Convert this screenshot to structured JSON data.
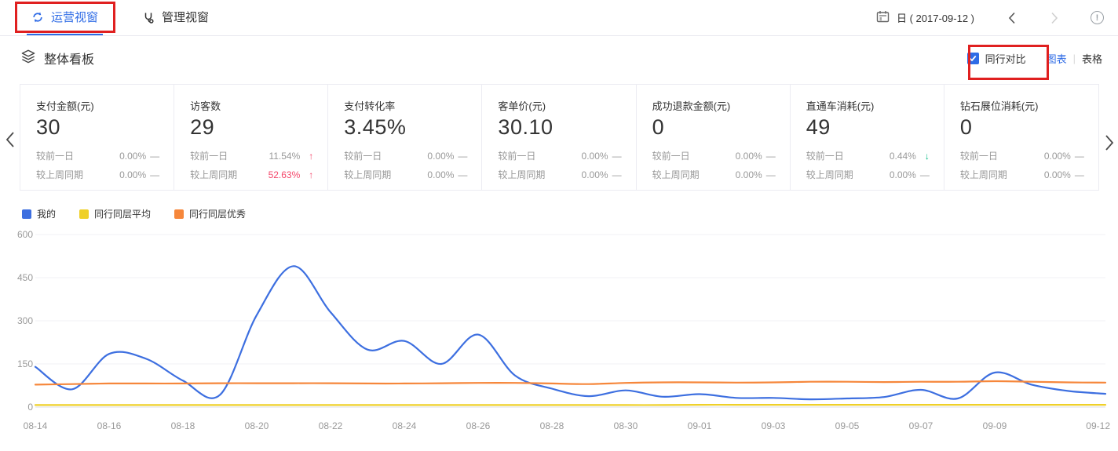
{
  "colors": {
    "accent_blue": "#2e6be6",
    "annotation_red": "#e02020",
    "up_red": "#f4486b",
    "down_green": "#00ba81",
    "flat_gray": "#9a9a9a",
    "axis_text": "#999999",
    "grid_line": "#f0f0f6",
    "grid_zero_line": "#dcdce4"
  },
  "header": {
    "tabs": [
      {
        "label": "运营视窗",
        "active": true
      },
      {
        "label": "管理视窗",
        "active": false
      }
    ],
    "date_label": "日 ( 2017-09-12 )",
    "info_glyph": "!"
  },
  "board": {
    "title": "整体看板",
    "peer_compare_label": "同行对比",
    "peer_compare_checked": true,
    "view_chart": "图表",
    "view_divider": "|",
    "view_table": "表格"
  },
  "kpi_cards": [
    {
      "title": "支付金额(元)",
      "value": "30",
      "rows": [
        {
          "label": "较前一日",
          "value": "0.00%",
          "trend": "flat",
          "emphasis": false
        },
        {
          "label": "较上周同期",
          "value": "0.00%",
          "trend": "flat",
          "emphasis": false
        }
      ]
    },
    {
      "title": "访客数",
      "value": "29",
      "rows": [
        {
          "label": "较前一日",
          "value": "11.54%",
          "trend": "up",
          "emphasis": false
        },
        {
          "label": "较上周同期",
          "value": "52.63%",
          "trend": "up",
          "emphasis": true
        }
      ]
    },
    {
      "title": "支付转化率",
      "value": "3.45%",
      "rows": [
        {
          "label": "较前一日",
          "value": "0.00%",
          "trend": "flat",
          "emphasis": false
        },
        {
          "label": "较上周同期",
          "value": "0.00%",
          "trend": "flat",
          "emphasis": false
        }
      ]
    },
    {
      "title": "客单价(元)",
      "value": "30.10",
      "rows": [
        {
          "label": "较前一日",
          "value": "0.00%",
          "trend": "flat",
          "emphasis": false
        },
        {
          "label": "较上周同期",
          "value": "0.00%",
          "trend": "flat",
          "emphasis": false
        }
      ]
    },
    {
      "title": "成功退款金额(元)",
      "value": "0",
      "rows": [
        {
          "label": "较前一日",
          "value": "0.00%",
          "trend": "flat",
          "emphasis": false
        },
        {
          "label": "较上周同期",
          "value": "0.00%",
          "trend": "flat",
          "emphasis": false
        }
      ]
    },
    {
      "title": "直通车消耗(元)",
      "value": "49",
      "rows": [
        {
          "label": "较前一日",
          "value": "0.44%",
          "trend": "down",
          "emphasis": false
        },
        {
          "label": "较上周同期",
          "value": "0.00%",
          "trend": "flat",
          "emphasis": false
        }
      ]
    },
    {
      "title": "钻石展位消耗(元)",
      "value": "0",
      "rows": [
        {
          "label": "较前一日",
          "value": "0.00%",
          "trend": "flat",
          "emphasis": false
        },
        {
          "label": "较上周同期",
          "value": "0.00%",
          "trend": "flat",
          "emphasis": false
        }
      ]
    }
  ],
  "chart_data": {
    "type": "line",
    "title": "",
    "xlabel": "",
    "ylabel": "",
    "ylim": [
      0,
      600
    ],
    "yticks": [
      0,
      150,
      300,
      450,
      600
    ],
    "grid": true,
    "smooth": true,
    "legend_position": "top-left",
    "x": [
      "08-14",
      "08-15",
      "08-16",
      "08-17",
      "08-18",
      "08-19",
      "08-20",
      "08-21",
      "08-22",
      "08-23",
      "08-24",
      "08-25",
      "08-26",
      "08-27",
      "08-28",
      "08-29",
      "08-30",
      "08-31",
      "09-01",
      "09-02",
      "09-03",
      "09-04",
      "09-05",
      "09-06",
      "09-07",
      "09-08",
      "09-09",
      "09-10",
      "09-11",
      "09-12"
    ],
    "x_tick_labels": [
      "08-14",
      "08-16",
      "08-18",
      "08-20",
      "08-22",
      "08-24",
      "08-26",
      "08-28",
      "08-30",
      "09-01",
      "09-03",
      "09-05",
      "09-07",
      "09-09",
      "09-12"
    ],
    "series": [
      {
        "name": "我的",
        "color": "#3d6fe0",
        "values": [
          140,
          62,
          185,
          168,
          92,
          42,
          320,
          490,
          330,
          200,
          230,
          150,
          252,
          110,
          64,
          38,
          58,
          36,
          45,
          32,
          32,
          27,
          30,
          35,
          60,
          30,
          120,
          78,
          56,
          46
        ]
      },
      {
        "name": "同行同层平均",
        "color": "#efd028",
        "values": [
          7,
          7,
          7,
          7,
          7,
          7,
          7,
          7,
          7,
          7,
          7,
          7,
          7,
          7,
          7,
          7,
          7,
          7,
          8,
          8,
          8,
          8,
          8,
          8,
          8,
          8,
          8,
          8,
          8,
          8
        ]
      },
      {
        "name": "同行同层优秀",
        "color": "#f6873b",
        "values": [
          78,
          80,
          82,
          82,
          82,
          83,
          83,
          83,
          83,
          82,
          82,
          83,
          84,
          84,
          82,
          80,
          84,
          86,
          86,
          85,
          86,
          88,
          88,
          87,
          88,
          88,
          90,
          88,
          86,
          85
        ]
      }
    ]
  }
}
